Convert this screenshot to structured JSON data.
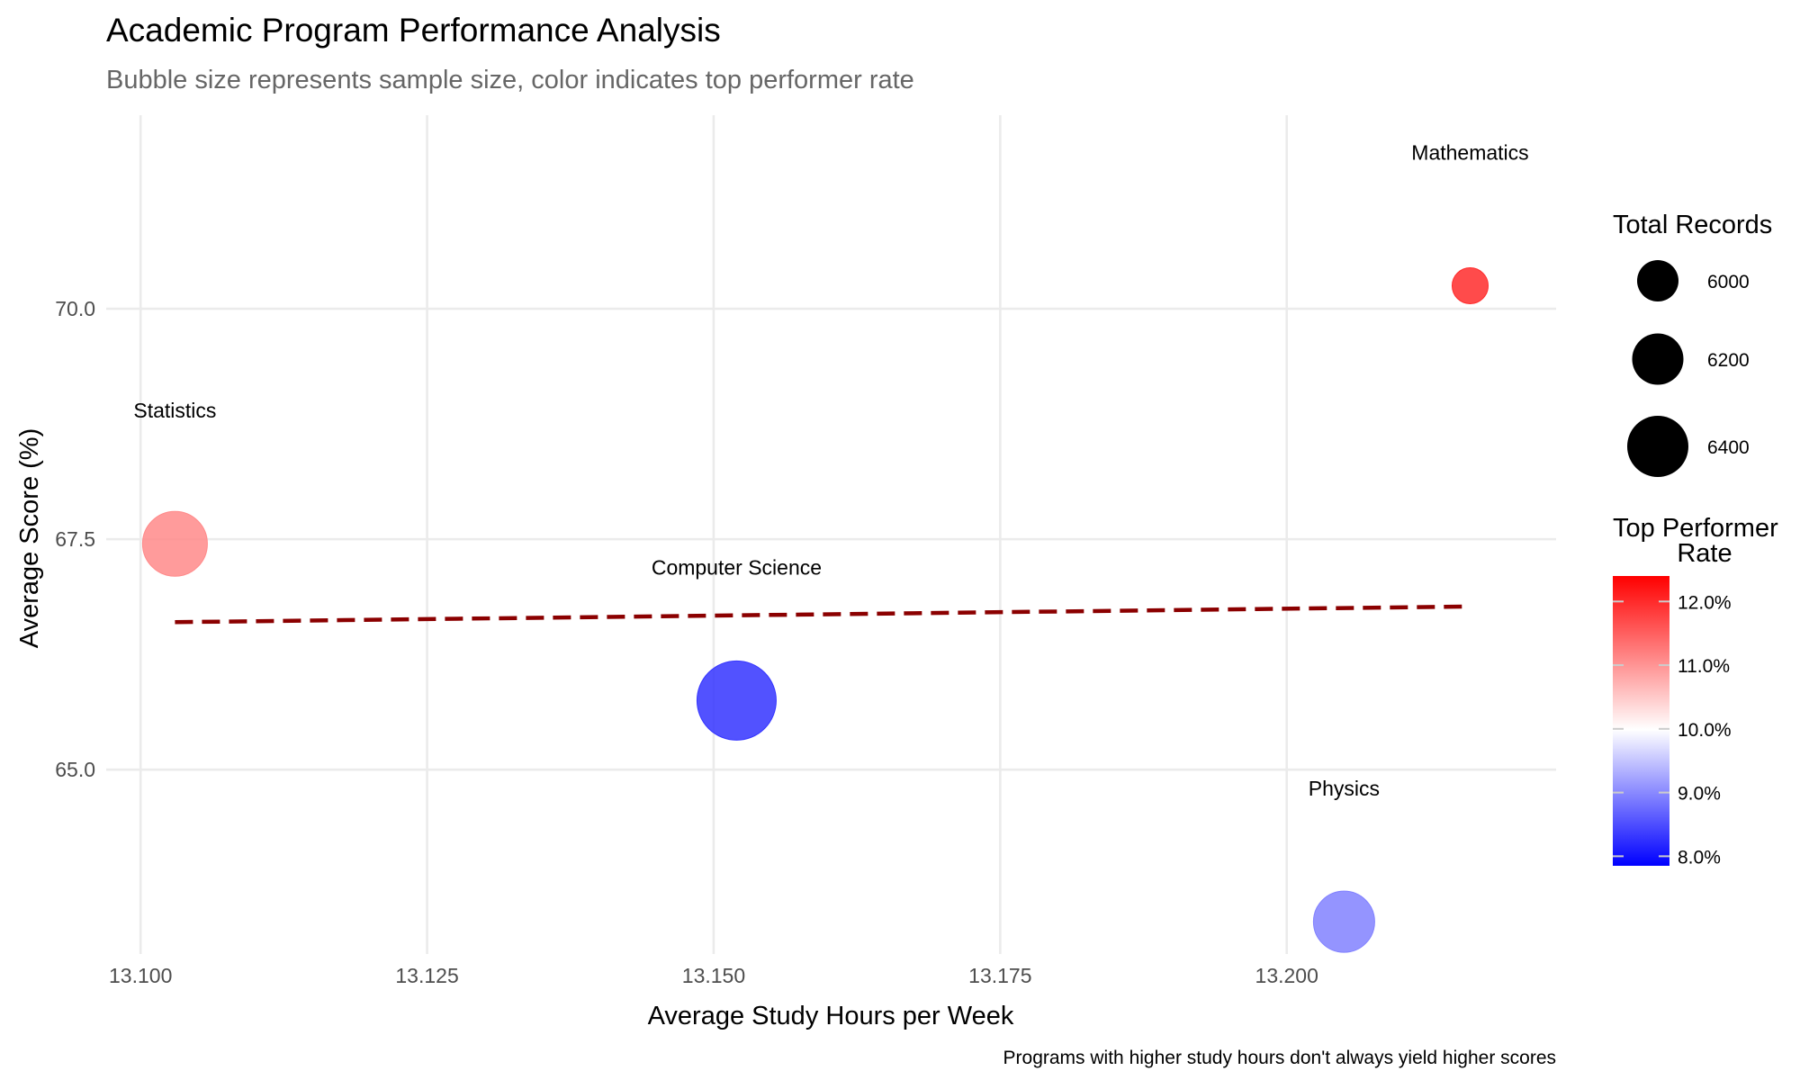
{
  "chart_data": {
    "type": "scatter",
    "title": "Academic Program Performance Analysis",
    "subtitle": "Bubble size represents sample size, color indicates top performer rate",
    "xlabel": "Average Study Hours per Week",
    "ylabel": "Average Score (%)",
    "caption": "Programs with higher study hours don't always yield higher scores",
    "xlim": [
      13.097,
      13.2235
    ],
    "ylim": [
      63.0,
      72.1
    ],
    "x_ticks": [
      13.1,
      13.125,
      13.15,
      13.175,
      13.2
    ],
    "x_tick_labels": [
      "13.100",
      "13.125",
      "13.150",
      "13.175",
      "13.200"
    ],
    "y_ticks": [
      65.0,
      67.5,
      70.0
    ],
    "y_tick_labels": [
      "65.0",
      "67.5",
      "70.0"
    ],
    "grid": true,
    "points": [
      {
        "label": "Statistics",
        "x": 13.103,
        "y": 67.45,
        "size": 6300,
        "rate": 0.11,
        "color": "#ff8a8a"
      },
      {
        "label": "Computer Science",
        "x": 13.152,
        "y": 65.75,
        "size": 6500,
        "rate": 0.079,
        "color": "#3434ff"
      },
      {
        "label": "Physics",
        "x": 13.205,
        "y": 63.35,
        "size": 6250,
        "rate": 0.09,
        "color": "#8181ff"
      },
      {
        "label": "Mathematics",
        "x": 13.216,
        "y": 70.25,
        "size": 5900,
        "rate": 0.123,
        "color": "#ff2b2b"
      }
    ],
    "trend_line": {
      "x": [
        13.103,
        13.216
      ],
      "y": [
        66.6,
        66.77
      ],
      "color": "#8b0000",
      "style": "dashed"
    },
    "size_legend": {
      "title": "Total Records",
      "values": [
        6000,
        6200,
        6400
      ],
      "labels": [
        "6000",
        "6200",
        "6400"
      ]
    },
    "color_legend": {
      "title_line1": "Top Performer",
      "title_line2": "Rate",
      "ticks": [
        0.08,
        0.09,
        0.1,
        0.11,
        0.12
      ],
      "tick_labels": [
        "8.0%",
        "9.0%",
        "10.0%",
        "11.0%",
        "12.0%"
      ],
      "range": [
        0.0785,
        0.124
      ],
      "low_color": "#0000ff",
      "mid_color": "#ffffff",
      "high_color": "#ff0000"
    },
    "legend_position": "right"
  }
}
